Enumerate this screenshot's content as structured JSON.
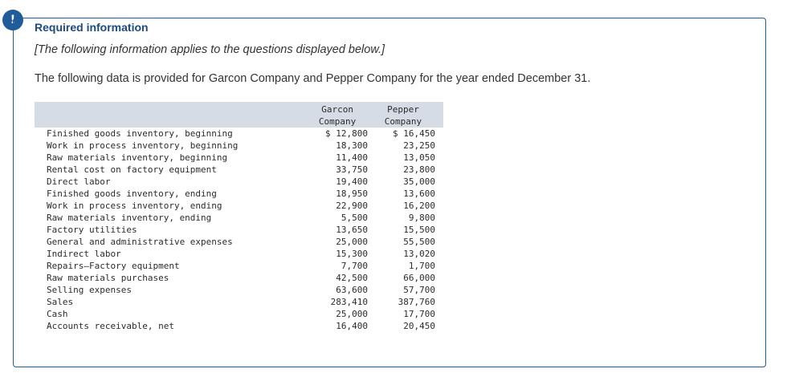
{
  "alert_icon": "exclamation-icon",
  "colors": {
    "accent": "#1f5c99",
    "table_header_bg": "#d6dce6"
  },
  "heading": "Required information",
  "note": "[The following information applies to the questions displayed below.]",
  "intro": "The following data is provided for Garcon Company and Pepper Company for the year ended December 31.",
  "table": {
    "columns": [
      {
        "line1": "Garcon",
        "line2": "Company"
      },
      {
        "line1": "Pepper",
        "line2": "Company"
      }
    ],
    "rows": [
      {
        "label": "Finished goods inventory, beginning",
        "garcon": "$ 12,800",
        "pepper": "$ 16,450"
      },
      {
        "label": "Work in process inventory, beginning",
        "garcon": "18,300",
        "pepper": "23,250"
      },
      {
        "label": "Raw materials inventory, beginning",
        "garcon": "11,400",
        "pepper": "13,050"
      },
      {
        "label": "Rental cost on factory equipment",
        "garcon": "33,750",
        "pepper": "23,800"
      },
      {
        "label": "Direct labor",
        "garcon": "19,400",
        "pepper": "35,000"
      },
      {
        "label": "Finished goods inventory, ending",
        "garcon": "18,950",
        "pepper": "13,600"
      },
      {
        "label": "Work in process inventory, ending",
        "garcon": "22,900",
        "pepper": "16,200"
      },
      {
        "label": "Raw materials inventory, ending",
        "garcon": "5,500",
        "pepper": "9,800"
      },
      {
        "label": "Factory utilities",
        "garcon": "13,650",
        "pepper": "15,500"
      },
      {
        "label": "General and administrative expenses",
        "garcon": "25,000",
        "pepper": "55,500"
      },
      {
        "label": "Indirect labor",
        "garcon": "15,300",
        "pepper": "13,020"
      },
      {
        "label": "Repairs—Factory equipment",
        "garcon": "7,700",
        "pepper": "1,700"
      },
      {
        "label": "Raw materials purchases",
        "garcon": "42,500",
        "pepper": "66,000"
      },
      {
        "label": "Selling expenses",
        "garcon": "63,600",
        "pepper": "57,700"
      },
      {
        "label": "Sales",
        "garcon": "283,410",
        "pepper": "387,760"
      },
      {
        "label": "Cash",
        "garcon": "25,000",
        "pepper": "17,700"
      },
      {
        "label": "Accounts receivable, net",
        "garcon": "16,400",
        "pepper": "20,450"
      }
    ]
  }
}
